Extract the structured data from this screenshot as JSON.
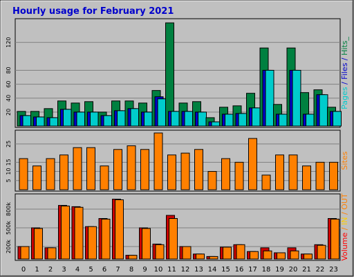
{
  "chart_data": {
    "type": "bar",
    "title": "Hourly usage for February 2021",
    "x": [
      "0",
      "1",
      "2",
      "3",
      "4",
      "5",
      "6",
      "7",
      "8",
      "9",
      "10",
      "11",
      "12",
      "13",
      "14",
      "15",
      "16",
      "17",
      "18",
      "19",
      "20",
      "21",
      "22",
      "23"
    ],
    "panels": [
      {
        "id": "pages",
        "legend_parts": [
          {
            "text": "Pages",
            "color": "#00CCCC"
          },
          {
            "text": " / ",
            "color": "#0000CC"
          },
          {
            "text": "Files",
            "color": "#0000CC"
          },
          {
            "text": " / ",
            "color": "#0000CC"
          },
          {
            "text": "Hits",
            "color": "#008040"
          },
          {
            "text": "_",
            "color": "#008040"
          }
        ],
        "ylim": [
          0,
          150
        ],
        "yticks": [
          "20",
          "40",
          "60",
          "80",
          "120"
        ],
        "ytick_values": [
          20,
          40,
          60,
          80,
          120
        ],
        "series": [
          {
            "name": "Hits",
            "color": "#008040",
            "values": [
              21,
              21,
              25,
              36,
              33,
              35,
              20,
              36,
              36,
              33,
              51,
              148,
              33,
              35,
              12,
              27,
              29,
              47,
              112,
              31,
              112,
              48,
              52,
              27
            ]
          },
          {
            "name": "Files",
            "color": "#0000CC",
            "values": [
              15,
              13,
              12,
              24,
              20,
              20,
              15,
              22,
              25,
              20,
              42,
              21,
              21,
              20,
              6,
              17,
              18,
              26,
              80,
              17,
              80,
              17,
              45,
              21
            ]
          },
          {
            "name": "Pages",
            "color": "#00CCCC",
            "values": [
              15,
              13,
              12,
              24,
              20,
              20,
              15,
              22,
              25,
              20,
              39,
              21,
              21,
              20,
              6,
              17,
              18,
              26,
              80,
              17,
              80,
              17,
              45,
              21
            ]
          }
        ]
      },
      {
        "id": "sites",
        "legend_parts": [
          {
            "text": "Sites",
            "color": "#FF8000"
          }
        ],
        "ylim": [
          0,
          31
        ],
        "yticks": [
          "5",
          "10",
          "15",
          "25"
        ],
        "ytick_values": [
          5,
          10,
          15,
          25
        ],
        "series": [
          {
            "name": "Sites",
            "color": "#FF8000",
            "values": [
              17,
              13,
              17,
              19,
              23,
              23,
              13,
              22,
              24,
              22,
              31,
              19,
              20,
              22,
              10,
              17,
              15,
              28,
              8,
              19,
              19,
              13,
              15,
              15
            ]
          }
        ]
      },
      {
        "id": "volume",
        "legend_parts": [
          {
            "text": "Volume",
            "color": "#FF0000"
          },
          {
            "text": " / ",
            "color": "#FF8000"
          },
          {
            "text": "IN",
            "color": "#FFCC00"
          },
          {
            "text": " / ",
            "color": "#FF8000"
          },
          {
            "text": "OUT",
            "color": "#FF8000"
          }
        ],
        "ylim": [
          0,
          1000
        ],
        "yticks": [
          "200k",
          "500k",
          "800k"
        ],
        "ytick_values": [
          200,
          500,
          800
        ],
        "series": [
          {
            "name": "Volume",
            "color": "#CC0000",
            "values": [
              200,
              500,
              180,
              860,
              840,
              520,
              650,
              960,
              60,
              500,
              240,
              700,
              200,
              80,
              40,
              190,
              230,
              120,
              180,
              100,
              180,
              80,
              230,
              650
            ]
          },
          {
            "name": "OUT",
            "color": "#FF8000",
            "values": [
              200,
              490,
              180,
              850,
              830,
              520,
              640,
              950,
              60,
              490,
              230,
              650,
              200,
              80,
              40,
              190,
              230,
              120,
              130,
              100,
              130,
              80,
              220,
              640
            ]
          }
        ]
      }
    ]
  }
}
